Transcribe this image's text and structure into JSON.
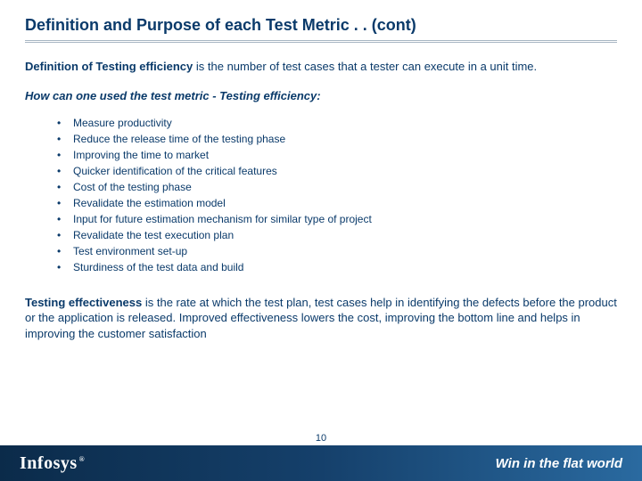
{
  "title": "Definition and Purpose of each Test Metric . . (cont)",
  "definition": {
    "lead": "Definition of Testing efficiency",
    "tail": " is the number of test cases that a tester can execute in a unit time."
  },
  "subhead": "How can one used the test metric - Testing efficiency:",
  "bullets": [
    "Measure productivity",
    "Reduce the release time of the testing phase",
    "Improving the time to market",
    "Quicker identification of the critical features",
    "Cost of the testing phase",
    "Revalidate the estimation model",
    "Input for future estimation mechanism for similar type of project",
    "Revalidate the test execution plan",
    "Test environment set-up",
    "Sturdiness of the test data and build"
  ],
  "effectiveness": {
    "lead": "Testing effectiveness",
    "tail": " is the rate at which the test plan, test cases help in identifying the defects before the product or the application is released. Improved effectiveness lowers the cost, improving the bottom line and helps in improving the customer satisfaction"
  },
  "footer": {
    "logo": "Infosys",
    "reg": "®",
    "page": "10",
    "tagline": "Win in the flat world"
  },
  "colors": {
    "text": "#0a3a6a",
    "footer_grad_start": "#0b2b4a",
    "footer_grad_end": "#2a6aa0"
  }
}
